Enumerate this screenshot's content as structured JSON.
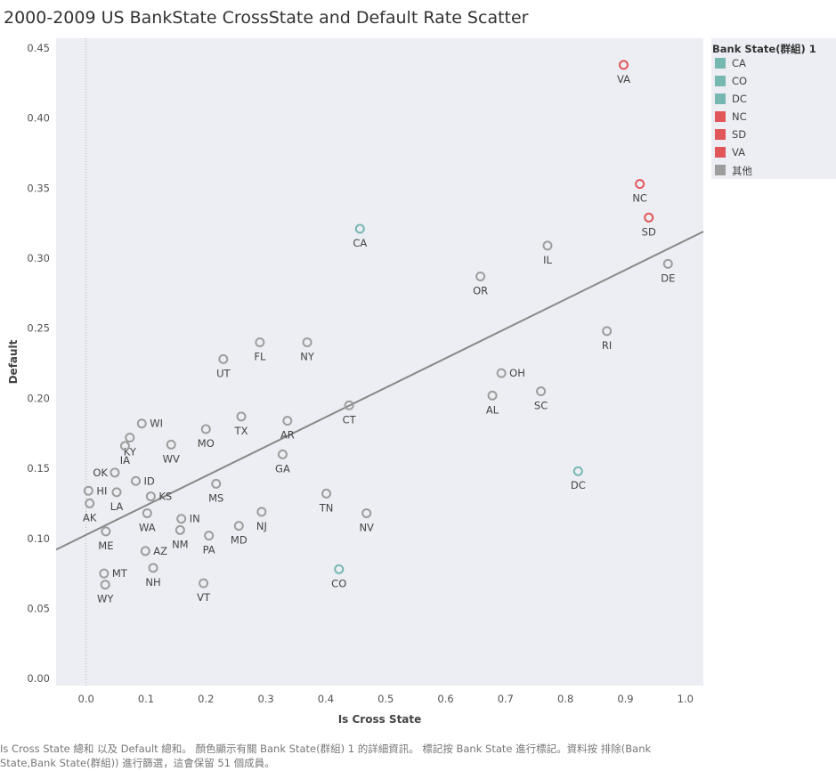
{
  "title": "2000-2009 US BankState CrossState and Default Rate Scatter",
  "caption": "Is Cross State 總和 以及 Default 總和。 顏色顯示有關 Bank State(群組) 1 的詳細資訊。 標記按 Bank State 進行標記。資料按 排除(Bank State,Bank State(群組)) 進行篩選，這會保留 51 個成員。",
  "colors": {
    "teal": "#76b7b2",
    "red": "#e15759",
    "gray": "#9d9d9d",
    "trend": "#888888",
    "plot_bg": "#eceef3"
  },
  "legend": {
    "title": "Bank State(群組) 1",
    "items": [
      {
        "label": "CA",
        "color": "#76b7b2"
      },
      {
        "label": "CO",
        "color": "#76b7b2"
      },
      {
        "label": "DC",
        "color": "#76b7b2"
      },
      {
        "label": "NC",
        "color": "#e15759"
      },
      {
        "label": "SD",
        "color": "#e15759"
      },
      {
        "label": "VA",
        "color": "#e15759"
      },
      {
        "label": "其他",
        "color": "#9d9d9d"
      }
    ]
  },
  "chart_data": {
    "type": "scatter",
    "title": "2000-2009 US BankState CrossState and Default Rate Scatter",
    "xlabel": "Is Cross State",
    "ylabel": "Default",
    "xlim": [
      -0.05,
      1.03
    ],
    "ylim": [
      -0.005,
      0.457
    ],
    "xticks": [
      0.0,
      0.1,
      0.2,
      0.3,
      0.4,
      0.5,
      0.6,
      0.7,
      0.8,
      0.9,
      1.0
    ],
    "xtick_labels": [
      "0.0",
      "0.1",
      "0.2",
      "0.3",
      "0.4",
      "0.5",
      "0.6",
      "0.7",
      "0.8",
      "0.9",
      "1.0"
    ],
    "yticks": [
      0.0,
      0.05,
      0.1,
      0.15,
      0.2,
      0.25,
      0.3,
      0.35,
      0.4,
      0.45
    ],
    "ytick_labels": [
      "0.00",
      "0.05",
      "0.10",
      "0.15",
      "0.20",
      "0.25",
      "0.30",
      "0.35",
      "0.40",
      "0.45"
    ],
    "trend_line": {
      "x": [
        -0.05,
        1.03
      ],
      "y": [
        0.092,
        0.319
      ]
    },
    "points": [
      {
        "label": "VA",
        "x": 0.897,
        "y": 0.438,
        "group": "VA"
      },
      {
        "label": "NC",
        "x": 0.924,
        "y": 0.353,
        "group": "NC"
      },
      {
        "label": "SD",
        "x": 0.939,
        "y": 0.329,
        "group": "SD"
      },
      {
        "label": "CA",
        "x": 0.457,
        "y": 0.321,
        "group": "CA"
      },
      {
        "label": "IL",
        "x": 0.77,
        "y": 0.309,
        "group": "其他"
      },
      {
        "label": "DE",
        "x": 0.971,
        "y": 0.296,
        "group": "其他"
      },
      {
        "label": "OR",
        "x": 0.658,
        "y": 0.287,
        "group": "其他"
      },
      {
        "label": "RI",
        "x": 0.869,
        "y": 0.248,
        "group": "其他"
      },
      {
        "label": "FL",
        "x": 0.29,
        "y": 0.24,
        "group": "其他"
      },
      {
        "label": "NY",
        "x": 0.369,
        "y": 0.24,
        "group": "其他"
      },
      {
        "label": "UT",
        "x": 0.229,
        "y": 0.228,
        "group": "其他"
      },
      {
        "label": "OH",
        "x": 0.693,
        "y": 0.218,
        "group": "其他"
      },
      {
        "label": "AL",
        "x": 0.678,
        "y": 0.202,
        "group": "其他"
      },
      {
        "label": "SC",
        "x": 0.759,
        "y": 0.205,
        "group": "其他"
      },
      {
        "label": "CT",
        "x": 0.439,
        "y": 0.195,
        "group": "其他"
      },
      {
        "label": "TX",
        "x": 0.259,
        "y": 0.187,
        "group": "其他"
      },
      {
        "label": "AR",
        "x": 0.336,
        "y": 0.184,
        "group": "其他"
      },
      {
        "label": "WI",
        "x": 0.093,
        "y": 0.182,
        "group": "其他"
      },
      {
        "label": "MO",
        "x": 0.2,
        "y": 0.178,
        "group": "其他"
      },
      {
        "label": "KY",
        "x": 0.073,
        "y": 0.172,
        "group": "其他"
      },
      {
        "label": "WV",
        "x": 0.142,
        "y": 0.167,
        "group": "其他"
      },
      {
        "label": "IA",
        "x": 0.065,
        "y": 0.166,
        "group": "其他"
      },
      {
        "label": "GA",
        "x": 0.328,
        "y": 0.16,
        "group": "其他"
      },
      {
        "label": "OK",
        "x": 0.048,
        "y": 0.147,
        "group": "其他"
      },
      {
        "label": "ID",
        "x": 0.083,
        "y": 0.141,
        "group": "其他"
      },
      {
        "label": "MS",
        "x": 0.217,
        "y": 0.139,
        "group": "其他"
      },
      {
        "label": "HI",
        "x": 0.004,
        "y": 0.134,
        "group": "其他"
      },
      {
        "label": "LA",
        "x": 0.051,
        "y": 0.133,
        "group": "其他"
      },
      {
        "label": "TN",
        "x": 0.401,
        "y": 0.132,
        "group": "其他"
      },
      {
        "label": "KS",
        "x": 0.108,
        "y": 0.13,
        "group": "其他"
      },
      {
        "label": "AK",
        "x": 0.006,
        "y": 0.125,
        "group": "其他"
      },
      {
        "label": "NJ",
        "x": 0.293,
        "y": 0.119,
        "group": "其他"
      },
      {
        "label": "WA",
        "x": 0.102,
        "y": 0.118,
        "group": "其他"
      },
      {
        "label": "NV",
        "x": 0.468,
        "y": 0.118,
        "group": "其他"
      },
      {
        "label": "IN",
        "x": 0.159,
        "y": 0.114,
        "group": "其他"
      },
      {
        "label": "MD",
        "x": 0.255,
        "y": 0.109,
        "group": "其他"
      },
      {
        "label": "NM",
        "x": 0.157,
        "y": 0.106,
        "group": "其他"
      },
      {
        "label": "ME",
        "x": 0.033,
        "y": 0.105,
        "group": "其他"
      },
      {
        "label": "PA",
        "x": 0.205,
        "y": 0.102,
        "group": "其他"
      },
      {
        "label": "AZ",
        "x": 0.099,
        "y": 0.091,
        "group": "其他"
      },
      {
        "label": "DC",
        "x": 0.821,
        "y": 0.148,
        "group": "DC"
      },
      {
        "label": "NH",
        "x": 0.112,
        "y": 0.079,
        "group": "其他"
      },
      {
        "label": "CO",
        "x": 0.422,
        "y": 0.078,
        "group": "CO"
      },
      {
        "label": "MT",
        "x": 0.03,
        "y": 0.075,
        "group": "其他"
      },
      {
        "label": "VT",
        "x": 0.196,
        "y": 0.068,
        "group": "其他"
      },
      {
        "label": "WY",
        "x": 0.032,
        "y": 0.067,
        "group": "其他"
      }
    ]
  }
}
